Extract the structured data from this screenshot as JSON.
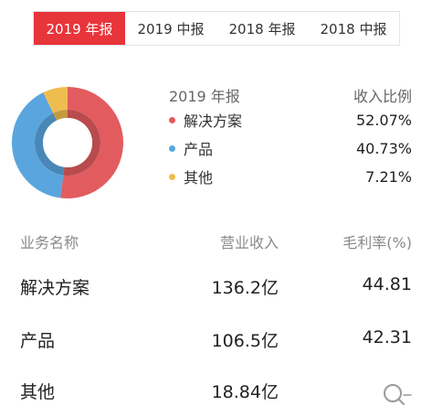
{
  "tabs": [
    {
      "label": "2019 年报",
      "active": true
    },
    {
      "label": "2019 中报",
      "active": false
    },
    {
      "label": "2018 年报",
      "active": false
    },
    {
      "label": "2018 中报",
      "active": false
    }
  ],
  "legend": {
    "period": "2019 年报",
    "ratio_header": "收入比例",
    "items": [
      {
        "name": "解决方案",
        "value": "52.07%",
        "share": 52.07,
        "color": "#e25c5f"
      },
      {
        "name": "产品",
        "value": "40.73%",
        "share": 40.73,
        "color": "#5aa5de"
      },
      {
        "name": "其他",
        "value": "7.21%",
        "share": 7.21,
        "color": "#efbd4f"
      }
    ]
  },
  "table": {
    "headers": [
      "业务名称",
      "营业收入",
      "毛利率(%)"
    ],
    "rows": [
      {
        "name": "解决方案",
        "revenue": "136.2亿",
        "margin": "44.81"
      },
      {
        "name": "产品",
        "revenue": "106.5亿",
        "margin": "42.31"
      },
      {
        "name": "其他",
        "revenue": "18.84亿",
        "margin": ""
      }
    ]
  },
  "icons": {
    "search": "search-icon"
  }
}
